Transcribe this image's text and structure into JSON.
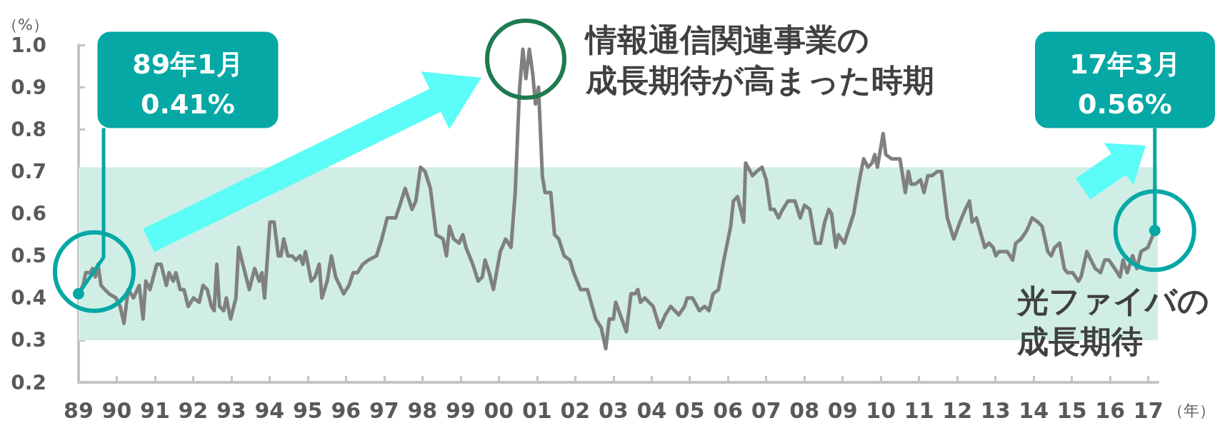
{
  "chart_data": {
    "type": "line",
    "ylabel": "（%）",
    "xlabel": "（年）",
    "xlim": [
      1989,
      2017.25
    ],
    "xticks": [
      {
        "value": 1989,
        "label": "89"
      },
      {
        "value": 1990,
        "label": "90"
      },
      {
        "value": 1991,
        "label": "91"
      },
      {
        "value": 1992,
        "label": "92"
      },
      {
        "value": 1993,
        "label": "93"
      },
      {
        "value": 1994,
        "label": "94"
      },
      {
        "value": 1995,
        "label": "95"
      },
      {
        "value": 1996,
        "label": "96"
      },
      {
        "value": 1997,
        "label": "97"
      },
      {
        "value": 1998,
        "label": "98"
      },
      {
        "value": 1999,
        "label": "99"
      },
      {
        "value": 2000,
        "label": "00"
      },
      {
        "value": 2001,
        "label": "01"
      },
      {
        "value": 2002,
        "label": "02"
      },
      {
        "value": 2003,
        "label": "03"
      },
      {
        "value": 2004,
        "label": "04"
      },
      {
        "value": 2005,
        "label": "05"
      },
      {
        "value": 2006,
        "label": "06"
      },
      {
        "value": 2007,
        "label": "07"
      },
      {
        "value": 2008,
        "label": "08"
      },
      {
        "value": 2009,
        "label": "09"
      },
      {
        "value": 2010,
        "label": "10"
      },
      {
        "value": 2011,
        "label": "11"
      },
      {
        "value": 2012,
        "label": "12"
      },
      {
        "value": 2013,
        "label": "13"
      },
      {
        "value": 2014,
        "label": "14"
      },
      {
        "value": 2015,
        "label": "15"
      },
      {
        "value": 2016,
        "label": "16"
      },
      {
        "value": 2017,
        "label": "17"
      }
    ],
    "ylim": [
      0.2,
      1.0
    ],
    "yticks": [
      0.2,
      0.3,
      0.4,
      0.5,
      0.6,
      0.7,
      0.8,
      0.9,
      {
        "value": 1,
        "label": "1.0"
      }
    ],
    "grid": false,
    "marker": "none",
    "bands": [
      {
        "axis": "y",
        "from": 0.3,
        "to": 0.71,
        "color": "#d0eee6"
      }
    ],
    "annotations": [
      {
        "text": "89年1月 0.41%",
        "x": 1989.0,
        "y": 0.41
      },
      {
        "text": "17年3月 0.56%",
        "x": 2017.17,
        "y": 0.56
      },
      "情報通信関連事業の成長期待が高まった時期",
      "光ファイバの成長期待"
    ],
    "series": [
      {
        "color": "#808080",
        "x": [
          1989.0,
          1989.12,
          1989.19,
          1989.3,
          1989.37,
          1989.44,
          1989.51,
          1989.59,
          1989.69,
          1989.8,
          1989.98,
          1990.09,
          1990.19,
          1990.3,
          1990.44,
          1990.59,
          1990.69,
          1990.76,
          1990.87,
          1991.05,
          1991.16,
          1991.3,
          1991.37,
          1991.48,
          1991.55,
          1991.66,
          1991.76,
          1991.87,
          1992.01,
          1992.16,
          1992.26,
          1992.37,
          1992.48,
          1992.55,
          1992.62,
          1992.69,
          1992.8,
          1992.87,
          1992.98,
          1993.12,
          1993.19,
          1993.3,
          1993.47,
          1993.61,
          1993.73,
          1993.8,
          1993.87,
          1994.01,
          1994.12,
          1994.23,
          1994.3,
          1994.37,
          1994.48,
          1994.59,
          1994.69,
          1994.8,
          1994.87,
          1994.94,
          1995.09,
          1995.19,
          1995.3,
          1995.37,
          1995.51,
          1995.62,
          1995.73,
          1995.94,
          1996.08,
          1996.19,
          1996.3,
          1996.44,
          1996.59,
          1996.8,
          1996.94,
          1997.08,
          1997.3,
          1997.41,
          1997.55,
          1997.73,
          1997.83,
          1997.95,
          1998.07,
          1998.21,
          1998.36,
          1998.54,
          1998.63,
          1998.71,
          1998.82,
          1998.96,
          1999.06,
          1999.14,
          1999.32,
          1999.46,
          1999.57,
          1999.64,
          1999.75,
          1999.86,
          2000.04,
          2000.18,
          2000.32,
          2000.43,
          2000.54,
          2000.63,
          2000.71,
          2000.8,
          2000.89,
          2000.96,
          2001.04,
          2001.14,
          2001.21,
          2001.36,
          2001.46,
          2001.57,
          2001.71,
          2001.86,
          2001.96,
          2002.14,
          2002.32,
          2002.54,
          2002.68,
          2002.8,
          2002.89,
          2003.0,
          2003.06,
          2003.18,
          2003.34,
          2003.46,
          2003.57,
          2003.64,
          2003.71,
          2003.82,
          2004.04,
          2004.21,
          2004.36,
          2004.5,
          2004.71,
          2004.86,
          2004.93,
          2005.07,
          2005.25,
          2005.39,
          2005.5,
          2005.61,
          2005.75,
          2005.89,
          2006.07,
          2006.14,
          2006.25,
          2006.41,
          2006.46,
          2006.64,
          2006.75,
          2006.89,
          2007.0,
          2007.11,
          2007.21,
          2007.32,
          2007.43,
          2007.57,
          2007.75,
          2007.89,
          2008.0,
          2008.14,
          2008.29,
          2008.42,
          2008.53,
          2008.64,
          2008.71,
          2008.82,
          2008.89,
          2009.04,
          2009.29,
          2009.44,
          2009.55,
          2009.66,
          2009.77,
          2009.84,
          2009.91,
          2010.06,
          2010.13,
          2010.28,
          2010.39,
          2010.5,
          2010.64,
          2010.72,
          2010.79,
          2010.9,
          2011.04,
          2011.13,
          2011.23,
          2011.34,
          2011.48,
          2011.59,
          2011.74,
          2011.91,
          2012.07,
          2012.21,
          2012.32,
          2012.39,
          2012.5,
          2012.72,
          2012.83,
          2012.94,
          2013.01,
          2013.09,
          2013.31,
          2013.45,
          2013.53,
          2013.67,
          2013.82,
          2013.96,
          2014.11,
          2014.22,
          2014.37,
          2014.46,
          2014.55,
          2014.68,
          2014.8,
          2014.88,
          2015.02,
          2015.17,
          2015.24,
          2015.39,
          2015.5,
          2015.61,
          2015.75,
          2015.86,
          2015.97,
          2016.12,
          2016.26,
          2016.34,
          2016.45,
          2016.59,
          2016.7,
          2016.81,
          2016.99,
          2017.17
        ],
        "values": [
          0.41,
          0.43,
          0.46,
          0.46,
          0.47,
          0.45,
          0.48,
          0.43,
          0.42,
          0.41,
          0.4,
          0.38,
          0.34,
          0.42,
          0.4,
          0.43,
          0.35,
          0.44,
          0.42,
          0.48,
          0.48,
          0.43,
          0.46,
          0.44,
          0.46,
          0.42,
          0.42,
          0.38,
          0.4,
          0.39,
          0.43,
          0.42,
          0.38,
          0.37,
          0.48,
          0.38,
          0.37,
          0.4,
          0.35,
          0.4,
          0.52,
          0.48,
          0.42,
          0.47,
          0.44,
          0.46,
          0.4,
          0.58,
          0.58,
          0.5,
          0.5,
          0.54,
          0.5,
          0.5,
          0.49,
          0.5,
          0.48,
          0.51,
          0.44,
          0.45,
          0.48,
          0.4,
          0.44,
          0.5,
          0.45,
          0.41,
          0.43,
          0.46,
          0.46,
          0.48,
          0.49,
          0.5,
          0.54,
          0.59,
          0.59,
          0.62,
          0.66,
          0.61,
          0.63,
          0.71,
          0.7,
          0.66,
          0.55,
          0.54,
          0.5,
          0.57,
          0.54,
          0.53,
          0.55,
          0.52,
          0.48,
          0.44,
          0.45,
          0.49,
          0.46,
          0.42,
          0.51,
          0.54,
          0.52,
          0.65,
          0.89,
          0.99,
          0.92,
          0.99,
          0.93,
          0.86,
          0.9,
          0.69,
          0.65,
          0.65,
          0.55,
          0.54,
          0.5,
          0.49,
          0.46,
          0.42,
          0.42,
          0.35,
          0.33,
          0.28,
          0.35,
          0.35,
          0.39,
          0.36,
          0.32,
          0.41,
          0.41,
          0.42,
          0.39,
          0.4,
          0.38,
          0.33,
          0.36,
          0.38,
          0.36,
          0.38,
          0.4,
          0.4,
          0.37,
          0.38,
          0.37,
          0.41,
          0.42,
          0.49,
          0.57,
          0.63,
          0.64,
          0.58,
          0.72,
          0.69,
          0.7,
          0.71,
          0.68,
          0.61,
          0.61,
          0.59,
          0.61,
          0.63,
          0.63,
          0.59,
          0.62,
          0.61,
          0.53,
          0.53,
          0.58,
          0.61,
          0.6,
          0.52,
          0.55,
          0.53,
          0.6,
          0.68,
          0.73,
          0.71,
          0.72,
          0.74,
          0.71,
          0.79,
          0.74,
          0.73,
          0.73,
          0.73,
          0.65,
          0.7,
          0.67,
          0.67,
          0.68,
          0.65,
          0.69,
          0.69,
          0.7,
          0.7,
          0.59,
          0.54,
          0.58,
          0.61,
          0.63,
          0.58,
          0.59,
          0.52,
          0.53,
          0.52,
          0.5,
          0.51,
          0.51,
          0.49,
          0.53,
          0.54,
          0.56,
          0.59,
          0.58,
          0.57,
          0.51,
          0.5,
          0.52,
          0.53,
          0.47,
          0.46,
          0.46,
          0.44,
          0.45,
          0.51,
          0.49,
          0.47,
          0.46,
          0.49,
          0.49,
          0.47,
          0.45,
          0.49,
          0.46,
          0.5,
          0.47,
          0.51,
          0.52,
          0.56
        ]
      }
    ]
  }
}
